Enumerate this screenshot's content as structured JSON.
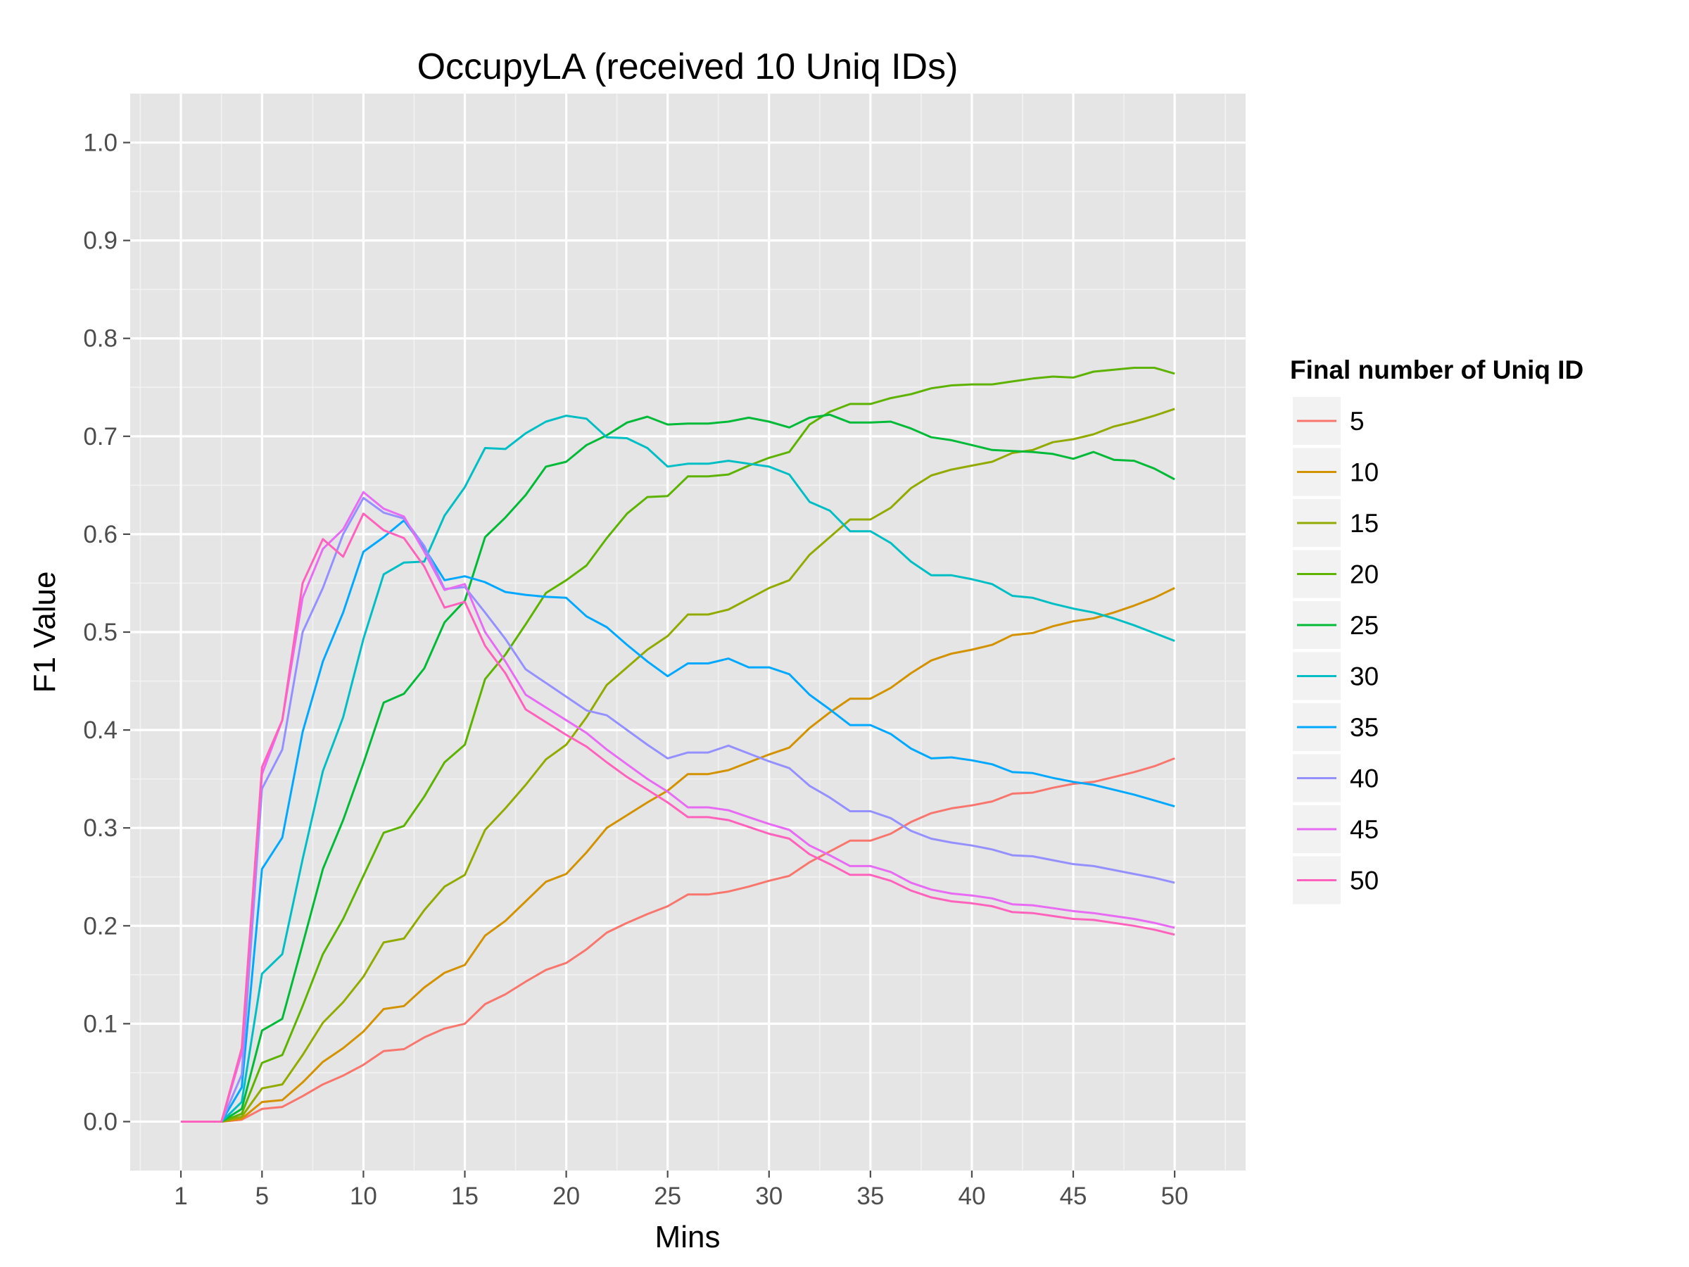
{
  "chart_data": {
    "type": "line",
    "title": "OccupyLA (received 10 Uniq IDs)",
    "xlabel": "Mins",
    "ylabel": "F1 Value",
    "xlim": [
      -1.5,
      53.5
    ],
    "ylim": [
      -0.05,
      1.05
    ],
    "x_ticks": [
      1,
      5,
      10,
      15,
      20,
      25,
      30,
      35,
      40,
      45,
      50
    ],
    "y_ticks": [
      0.0,
      0.1,
      0.2,
      0.3,
      0.4,
      0.5,
      0.6,
      0.7,
      0.8,
      0.9,
      1.0
    ],
    "y_tick_labels": [
      "0.0",
      "0.1",
      "0.2",
      "0.3",
      "0.4",
      "0.5",
      "0.6",
      "0.7",
      "0.8",
      "0.9",
      "1.0"
    ],
    "grid": true,
    "background": "#e5e5e5",
    "legend": {
      "title": "Final number of Uniq ID",
      "position": "right"
    },
    "x": [
      1,
      2,
      3,
      4,
      5,
      6,
      7,
      8,
      9,
      10,
      11,
      12,
      13,
      14,
      15,
      16,
      17,
      18,
      19,
      20,
      21,
      22,
      23,
      24,
      25,
      26,
      27,
      28,
      29,
      30,
      31,
      32,
      33,
      34,
      35,
      36,
      37,
      38,
      39,
      40,
      41,
      42,
      43,
      44,
      45,
      46,
      47,
      48,
      49,
      50
    ],
    "series": [
      {
        "name": "5",
        "color": "#f8766d",
        "values": [
          0,
          0,
          0,
          0.002,
          0.013,
          0.015,
          0.026,
          0.038,
          0.047,
          0.058,
          0.072,
          0.074,
          0.086,
          0.095,
          0.1,
          0.12,
          0.13,
          0.143,
          0.155,
          0.162,
          0.176,
          0.193,
          0.203,
          0.212,
          0.22,
          0.232,
          0.232,
          0.235,
          0.24,
          0.246,
          0.251,
          0.265,
          0.276,
          0.287,
          0.287,
          0.294,
          0.306,
          0.315,
          0.32,
          0.323,
          0.327,
          0.335,
          0.336,
          0.341,
          0.345,
          0.347,
          0.352,
          0.357,
          0.363,
          0.371
        ]
      },
      {
        "name": "10",
        "color": "#d39200",
        "values": [
          0,
          0,
          0,
          0.003,
          0.02,
          0.022,
          0.04,
          0.061,
          0.075,
          0.092,
          0.115,
          0.118,
          0.137,
          0.152,
          0.16,
          0.19,
          0.205,
          0.225,
          0.245,
          0.253,
          0.275,
          0.3,
          0.313,
          0.326,
          0.338,
          0.355,
          0.355,
          0.359,
          0.367,
          0.375,
          0.382,
          0.402,
          0.418,
          0.432,
          0.432,
          0.443,
          0.458,
          0.471,
          0.478,
          0.482,
          0.487,
          0.497,
          0.499,
          0.506,
          0.511,
          0.514,
          0.52,
          0.527,
          0.535,
          0.545
        ]
      },
      {
        "name": "15",
        "color": "#93aa00",
        "values": [
          0,
          0,
          0,
          0.005,
          0.034,
          0.038,
          0.068,
          0.101,
          0.122,
          0.148,
          0.183,
          0.187,
          0.216,
          0.24,
          0.252,
          0.298,
          0.32,
          0.344,
          0.37,
          0.385,
          0.413,
          0.446,
          0.464,
          0.482,
          0.496,
          0.518,
          0.518,
          0.523,
          0.534,
          0.545,
          0.553,
          0.579,
          0.597,
          0.615,
          0.615,
          0.627,
          0.647,
          0.66,
          0.666,
          0.67,
          0.674,
          0.683,
          0.686,
          0.694,
          0.697,
          0.702,
          0.71,
          0.715,
          0.721,
          0.728
        ]
      },
      {
        "name": "20",
        "color": "#5eb300",
        "values": [
          0,
          0,
          0,
          0.008,
          0.06,
          0.068,
          0.118,
          0.171,
          0.207,
          0.251,
          0.295,
          0.302,
          0.332,
          0.367,
          0.385,
          0.452,
          0.477,
          0.508,
          0.54,
          0.553,
          0.568,
          0.596,
          0.621,
          0.638,
          0.639,
          0.659,
          0.659,
          0.661,
          0.67,
          0.678,
          0.684,
          0.712,
          0.725,
          0.733,
          0.733,
          0.739,
          0.743,
          0.749,
          0.752,
          0.753,
          0.753,
          0.756,
          0.759,
          0.761,
          0.76,
          0.766,
          0.768,
          0.77,
          0.77,
          0.764
        ]
      },
      {
        "name": "25",
        "color": "#00ba38",
        "values": [
          0,
          0,
          0,
          0.013,
          0.093,
          0.105,
          0.181,
          0.258,
          0.308,
          0.366,
          0.428,
          0.437,
          0.463,
          0.51,
          0.532,
          0.597,
          0.617,
          0.64,
          0.669,
          0.674,
          0.691,
          0.701,
          0.714,
          0.72,
          0.712,
          0.713,
          0.713,
          0.715,
          0.719,
          0.715,
          0.709,
          0.719,
          0.722,
          0.714,
          0.714,
          0.715,
          0.708,
          0.699,
          0.696,
          0.691,
          0.686,
          0.685,
          0.684,
          0.682,
          0.677,
          0.684,
          0.676,
          0.675,
          0.667,
          0.656
        ]
      },
      {
        "name": "30",
        "color": "#00bfc4",
        "values": [
          0,
          0,
          0,
          0.02,
          0.151,
          0.171,
          0.268,
          0.358,
          0.413,
          0.493,
          0.559,
          0.571,
          0.572,
          0.619,
          0.648,
          0.688,
          0.687,
          0.703,
          0.715,
          0.721,
          0.718,
          0.699,
          0.698,
          0.688,
          0.669,
          0.672,
          0.672,
          0.675,
          0.672,
          0.669,
          0.661,
          0.633,
          0.624,
          0.603,
          0.603,
          0.591,
          0.572,
          0.558,
          0.558,
          0.554,
          0.549,
          0.537,
          0.535,
          0.529,
          0.524,
          0.52,
          0.514,
          0.507,
          0.499,
          0.491
        ]
      },
      {
        "name": "35",
        "color": "#00a9ff",
        "values": [
          0,
          0,
          0,
          0.035,
          0.258,
          0.29,
          0.398,
          0.47,
          0.52,
          0.582,
          0.597,
          0.614,
          0.586,
          0.553,
          0.557,
          0.551,
          0.541,
          0.538,
          0.536,
          0.535,
          0.516,
          0.505,
          0.487,
          0.47,
          0.455,
          0.468,
          0.468,
          0.473,
          0.464,
          0.464,
          0.457,
          0.436,
          0.421,
          0.405,
          0.405,
          0.396,
          0.381,
          0.371,
          0.372,
          0.369,
          0.365,
          0.357,
          0.356,
          0.351,
          0.347,
          0.344,
          0.339,
          0.334,
          0.328,
          0.322
        ]
      },
      {
        "name": "40",
        "color": "#9590ff",
        "values": [
          0,
          0,
          0,
          0.048,
          0.34,
          0.38,
          0.5,
          0.545,
          0.6,
          0.637,
          0.622,
          0.616,
          0.588,
          0.544,
          0.546,
          0.52,
          0.493,
          0.462,
          0.448,
          0.434,
          0.42,
          0.415,
          0.4,
          0.385,
          0.371,
          0.377,
          0.377,
          0.384,
          0.376,
          0.368,
          0.361,
          0.343,
          0.331,
          0.317,
          0.317,
          0.31,
          0.297,
          0.289,
          0.285,
          0.282,
          0.278,
          0.272,
          0.271,
          0.267,
          0.263,
          0.261,
          0.257,
          0.253,
          0.249,
          0.244
        ]
      },
      {
        "name": "45",
        "color": "#e76bf3",
        "values": [
          0,
          0,
          0,
          0.07,
          0.355,
          0.41,
          0.535,
          0.585,
          0.605,
          0.643,
          0.626,
          0.618,
          0.582,
          0.543,
          0.549,
          0.5,
          0.47,
          0.436,
          0.423,
          0.41,
          0.397,
          0.38,
          0.365,
          0.35,
          0.337,
          0.321,
          0.321,
          0.318,
          0.311,
          0.304,
          0.298,
          0.282,
          0.272,
          0.261,
          0.261,
          0.255,
          0.244,
          0.237,
          0.233,
          0.231,
          0.228,
          0.222,
          0.221,
          0.218,
          0.215,
          0.213,
          0.21,
          0.207,
          0.203,
          0.198
        ]
      },
      {
        "name": "50",
        "color": "#ff62bc",
        "values": [
          0,
          0,
          0,
          0.075,
          0.362,
          0.41,
          0.55,
          0.595,
          0.577,
          0.621,
          0.604,
          0.596,
          0.567,
          0.525,
          0.531,
          0.486,
          0.458,
          0.421,
          0.408,
          0.395,
          0.383,
          0.367,
          0.352,
          0.339,
          0.326,
          0.311,
          0.311,
          0.308,
          0.301,
          0.294,
          0.289,
          0.273,
          0.263,
          0.252,
          0.252,
          0.246,
          0.236,
          0.229,
          0.225,
          0.223,
          0.22,
          0.214,
          0.213,
          0.21,
          0.207,
          0.206,
          0.203,
          0.2,
          0.196,
          0.191
        ]
      }
    ]
  }
}
